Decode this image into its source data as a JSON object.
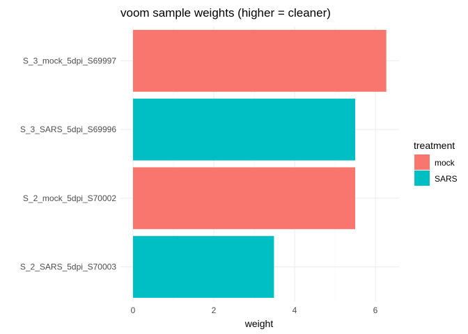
{
  "chart_data": {
    "type": "bar",
    "orientation": "horizontal",
    "title": "voom sample weights (higher = cleaner)",
    "xlabel": "weight",
    "ylabel": "",
    "categories": [
      "S_3_mock_5dpi_S69997",
      "S_3_SARS_5dpi_S69996",
      "S_2_mock_5dpi_S70002",
      "S_2_SARS_5dpi_S70003"
    ],
    "values": [
      6.27,
      5.5,
      5.5,
      3.49
    ],
    "groups": [
      "mock",
      "SARS",
      "mock",
      "SARS"
    ],
    "xlim": [
      0,
      6.6
    ],
    "xticks": [
      0,
      2,
      4,
      6
    ],
    "grid": true,
    "legend": {
      "title": "treatment",
      "position": "right",
      "entries": [
        {
          "label": "mock",
          "color": "#F8766D"
        },
        {
          "label": "SARS",
          "color": "#00BFC4"
        }
      ]
    }
  }
}
